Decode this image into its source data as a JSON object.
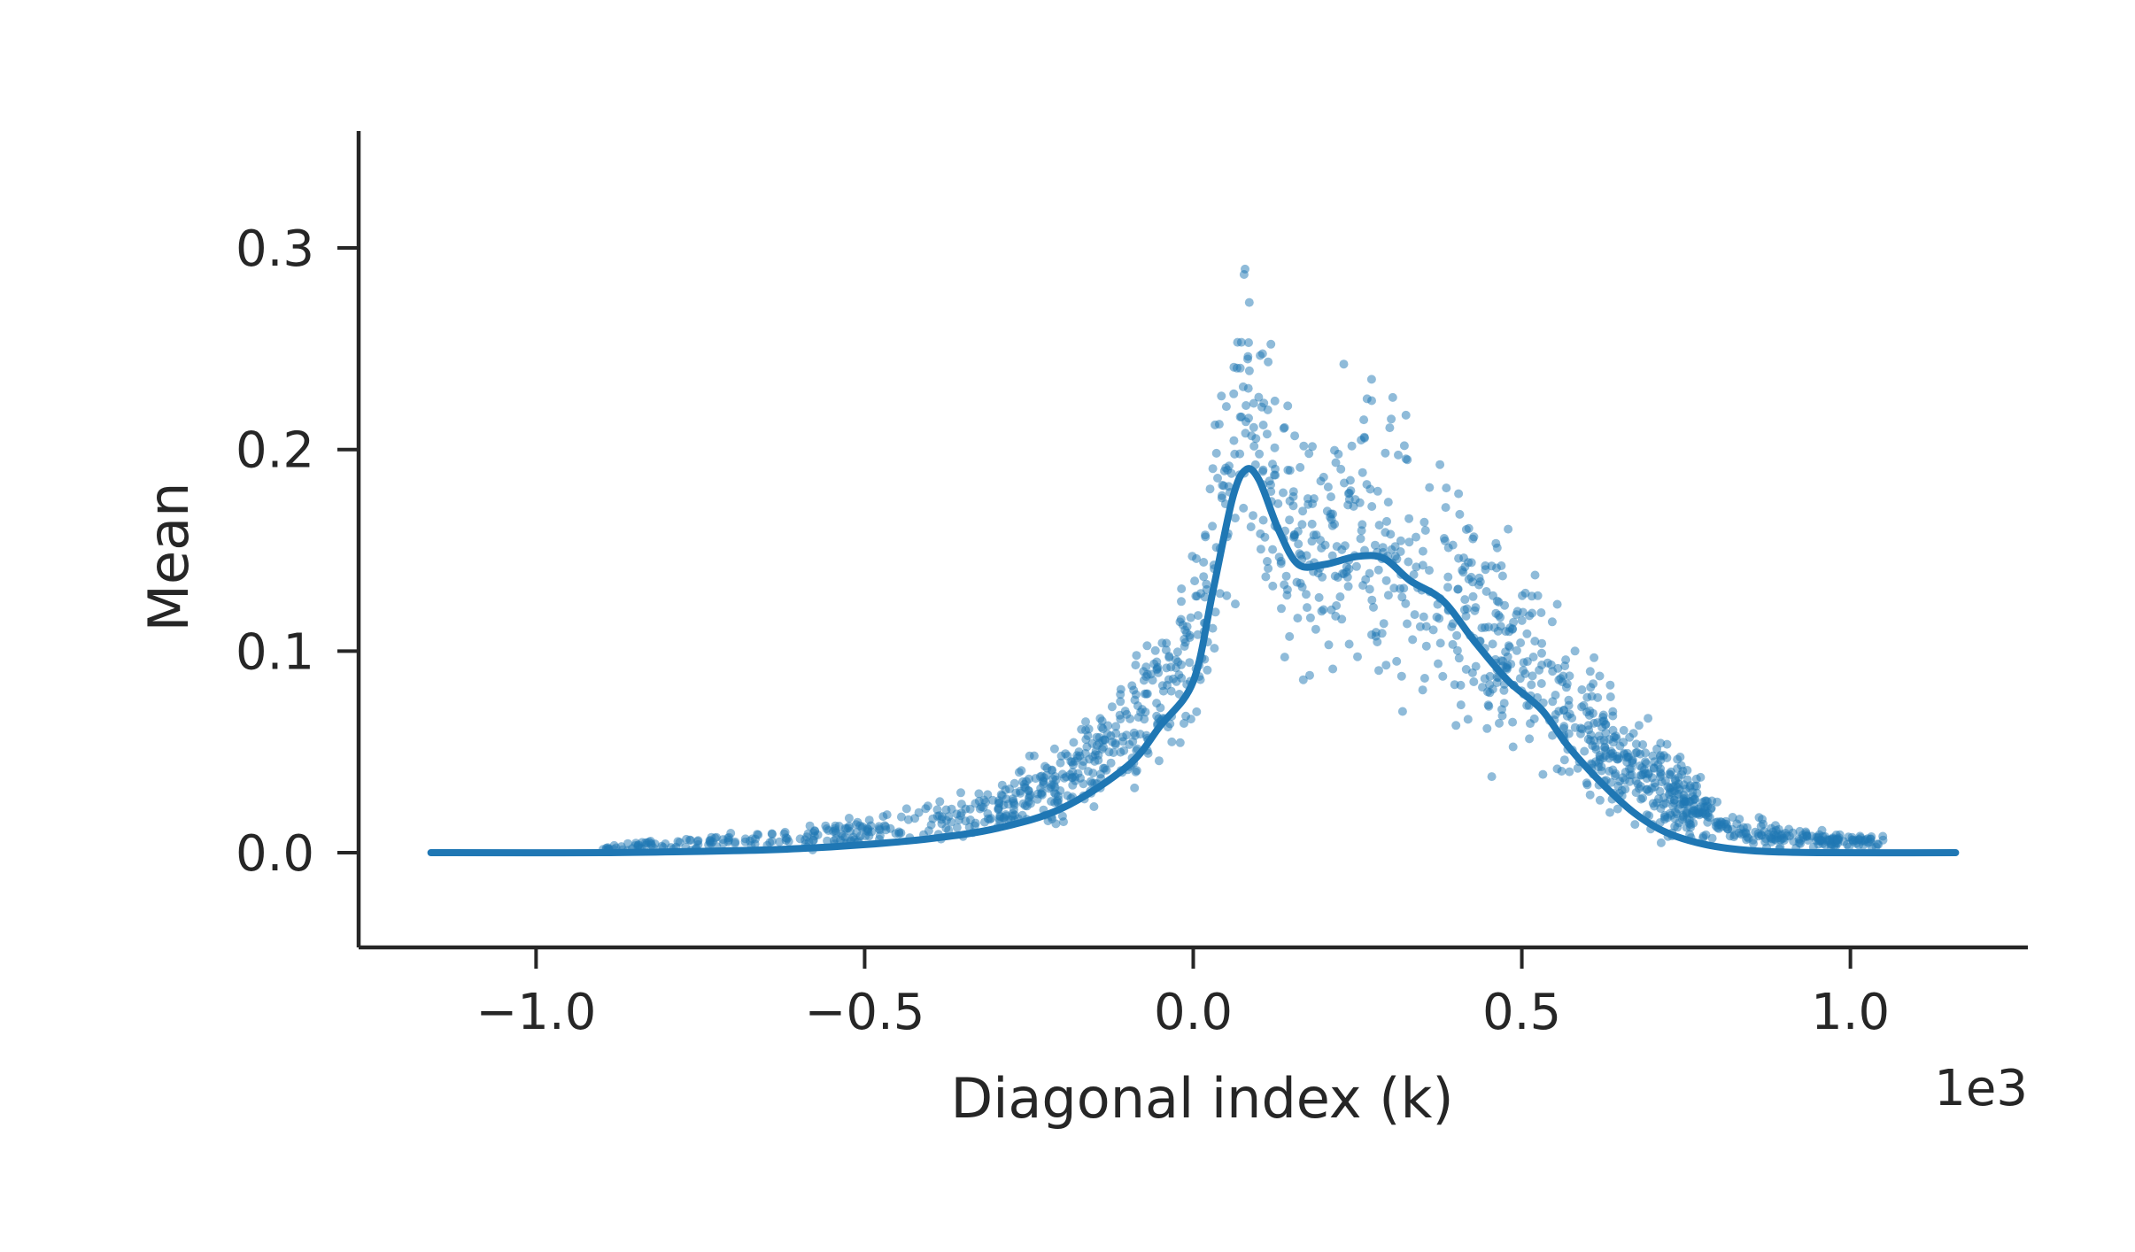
{
  "chart_data": {
    "type": "scatter",
    "title": "",
    "xlabel": "Diagonal index (k)",
    "ylabel": "Mean",
    "x_offset_label": "1e3",
    "xlim": [
      -1.27,
      1.27
    ],
    "ylim": [
      -0.047,
      0.358
    ],
    "x_ticks": [
      -1.0,
      -0.5,
      0.0,
      0.5,
      1.0
    ],
    "x_tick_labels": [
      "−1.0",
      "−0.5",
      "0.0",
      "0.5",
      "1.0"
    ],
    "y_ticks": [
      0.0,
      0.1,
      0.2,
      0.3
    ],
    "y_tick_labels": [
      "0.0",
      "0.1",
      "0.2",
      "0.3"
    ],
    "grid": false,
    "legend": "none",
    "colors": {
      "points": "#1f77b4",
      "line": "#1f77b4",
      "axis": "#262626"
    },
    "series": [
      {
        "kind": "scatter",
        "point_opacity": 0.5,
        "samples_note_count": 1600,
        "envelope": [
          [
            -0.9,
            0.0,
            0.004
          ],
          [
            -0.7,
            0.0,
            0.012
          ],
          [
            -0.5,
            0.0,
            0.02
          ],
          [
            -0.3,
            0.005,
            0.04
          ],
          [
            -0.2,
            0.008,
            0.06
          ],
          [
            -0.1,
            0.02,
            0.1
          ],
          [
            0.0,
            0.04,
            0.16
          ],
          [
            0.08,
            0.12,
            0.33
          ],
          [
            0.15,
            0.07,
            0.25
          ],
          [
            0.3,
            0.05,
            0.25
          ],
          [
            0.4,
            0.04,
            0.22
          ],
          [
            0.5,
            0.02,
            0.17
          ],
          [
            0.6,
            0.01,
            0.11
          ],
          [
            0.7,
            0.0,
            0.07
          ],
          [
            0.8,
            0.0,
            0.03
          ],
          [
            0.9,
            0.0,
            0.015
          ],
          [
            1.05,
            0.0,
            0.01
          ]
        ]
      },
      {
        "kind": "line",
        "x": [
          -1.16,
          -0.9,
          -0.7,
          -0.6,
          -0.5,
          -0.4,
          -0.3,
          -0.2,
          -0.1,
          -0.05,
          0.0,
          0.03,
          0.06,
          0.08,
          0.1,
          0.13,
          0.16,
          0.2,
          0.25,
          0.29,
          0.33,
          0.38,
          0.43,
          0.48,
          0.53,
          0.57,
          0.62,
          0.67,
          0.72,
          0.78,
          0.85,
          0.95,
          1.16
        ],
        "y": [
          0.0,
          0.0,
          0.001,
          0.002,
          0.004,
          0.007,
          0.012,
          0.022,
          0.043,
          0.063,
          0.085,
          0.13,
          0.176,
          0.19,
          0.185,
          0.16,
          0.143,
          0.143,
          0.147,
          0.146,
          0.135,
          0.125,
          0.104,
          0.085,
          0.071,
          0.053,
          0.035,
          0.02,
          0.01,
          0.004,
          0.001,
          0.0,
          0.0
        ]
      }
    ]
  }
}
